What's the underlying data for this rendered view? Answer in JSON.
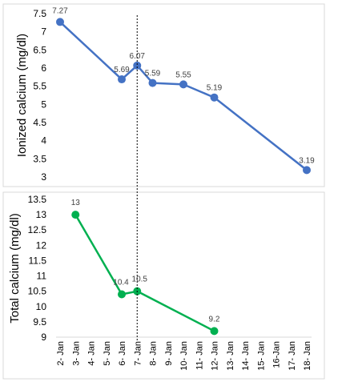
{
  "chart_data": [
    {
      "type": "line",
      "ylabel": "Ionized calcium (mg/dl)",
      "ylim": [
        3,
        7.5
      ],
      "yticks": [
        "3",
        "3.5",
        "4",
        "4.5",
        "5",
        "5.5",
        "6",
        "6.5",
        "7",
        "7.5"
      ],
      "color": "#4472C4",
      "series": [
        {
          "x": [
            "2- Jan",
            "6- Jan",
            "7- Jan",
            "8- Jan",
            "10- Jan",
            "12- Jan",
            "18- Jan"
          ],
          "values": [
            7.27,
            5.69,
            6.07,
            5.59,
            5.55,
            5.19,
            3.19
          ],
          "labels": [
            "7.27",
            "5.69",
            "6.07",
            "5.59",
            "5.55",
            "5.19",
            "3.19"
          ]
        }
      ]
    },
    {
      "type": "line",
      "ylabel": "Total calcium (mg/dl)",
      "ylim": [
        9,
        13.5
      ],
      "yticks": [
        "9",
        "9.5",
        "10",
        "10.5",
        "11",
        "11.5",
        "12",
        "12.5",
        "13",
        "13.5"
      ],
      "color": "#00B050",
      "series": [
        {
          "x": [
            "3- Jan",
            "6- Jan",
            "7- Jan",
            "12- Jan"
          ],
          "values": [
            13,
            10.4,
            10.5,
            9.2
          ],
          "labels": [
            "13",
            "10.4",
            "10.5",
            "9.2"
          ]
        }
      ],
      "categories": [
        "2- Jan",
        "3- Jan",
        "4- Jan",
        "5- Jan",
        "6- Jan",
        "7- Jan",
        "8- Jan",
        "9- Jan",
        "10- Jan",
        "11- Jan",
        "12- Jan",
        "13- Jan",
        "14- Jan",
        "15- Jan",
        "16-Jan",
        "17- Jan",
        "18- Jan"
      ]
    }
  ],
  "reference_line_at": "7- Jan"
}
